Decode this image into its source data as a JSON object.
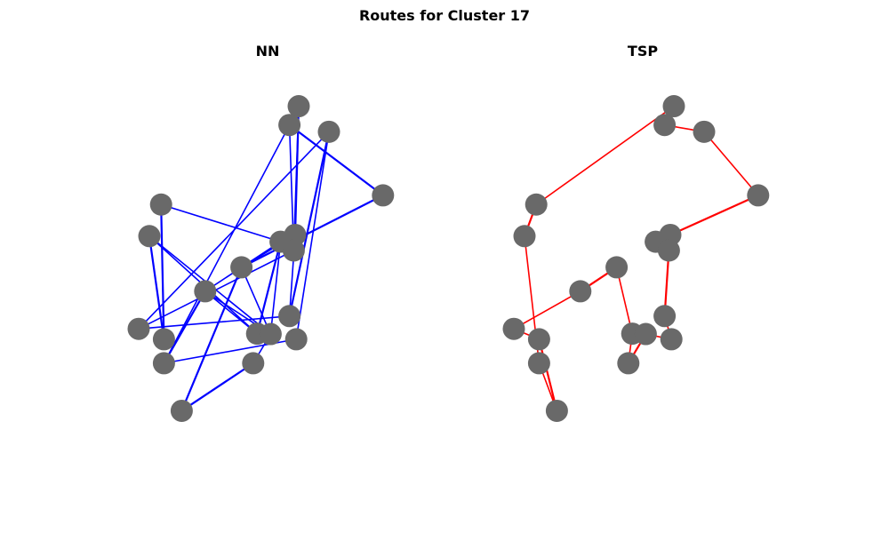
{
  "figure": {
    "title": "Routes for Cluster 17"
  },
  "colors": {
    "node": "#696969",
    "nn_edge": "#0000ff",
    "tsp_edge": "#ff0000"
  },
  "chart_data": [
    {
      "type": "network",
      "title": "NN",
      "xlim": [
        0,
        7.5
      ],
      "ylim": [
        0,
        10
      ],
      "axis_visible": false,
      "grid": false,
      "nodes": [
        {
          "id": 0,
          "x": 5.28,
          "y": 9.01
        },
        {
          "id": 1,
          "x": 5.02,
          "y": 8.54
        },
        {
          "id": 2,
          "x": 6.13,
          "y": 8.37
        },
        {
          "id": 3,
          "x": 7.65,
          "y": 6.78
        },
        {
          "id": 4,
          "x": 1.41,
          "y": 6.55
        },
        {
          "id": 5,
          "x": 1.08,
          "y": 5.76
        },
        {
          "id": 6,
          "x": 5.18,
          "y": 5.79
        },
        {
          "id": 7,
          "x": 4.77,
          "y": 5.62
        },
        {
          "id": 8,
          "x": 5.14,
          "y": 5.4
        },
        {
          "id": 9,
          "x": 3.67,
          "y": 4.98
        },
        {
          "id": 10,
          "x": 2.65,
          "y": 4.38
        },
        {
          "id": 11,
          "x": 0.78,
          "y": 3.44
        },
        {
          "id": 12,
          "x": 1.49,
          "y": 3.18
        },
        {
          "id": 13,
          "x": 4.11,
          "y": 3.32
        },
        {
          "id": 14,
          "x": 4.49,
          "y": 3.31
        },
        {
          "id": 15,
          "x": 5.02,
          "y": 3.76
        },
        {
          "id": 16,
          "x": 5.21,
          "y": 3.18
        },
        {
          "id": 17,
          "x": 1.49,
          "y": 2.58
        },
        {
          "id": 18,
          "x": 4.0,
          "y": 2.58
        },
        {
          "id": 19,
          "x": 1.99,
          "y": 1.39
        }
      ],
      "edges": [
        [
          0,
          6
        ],
        [
          1,
          8
        ],
        [
          1,
          17
        ],
        [
          1,
          3
        ],
        [
          2,
          11
        ],
        [
          2,
          16
        ],
        [
          3,
          9
        ],
        [
          4,
          7
        ],
        [
          4,
          12
        ],
        [
          5,
          12
        ],
        [
          5,
          13
        ],
        [
          6,
          9
        ],
        [
          7,
          13
        ],
        [
          7,
          10
        ],
        [
          8,
          11
        ],
        [
          9,
          19
        ],
        [
          9,
          14
        ],
        [
          10,
          14
        ],
        [
          10,
          17
        ],
        [
          11,
          15
        ],
        [
          15,
          6
        ],
        [
          12,
          4
        ],
        [
          16,
          17
        ],
        [
          14,
          7
        ],
        [
          18,
          19
        ],
        [
          18,
          14
        ],
        [
          0,
          8
        ],
        [
          2,
          15
        ],
        [
          5,
          14
        ],
        [
          13,
          10
        ]
      ]
    },
    {
      "type": "network",
      "title": "TSP",
      "xlim": [
        0,
        7.5
      ],
      "ylim": [
        0,
        10
      ],
      "axis_visible": false,
      "grid": false,
      "nodes": [
        {
          "id": 0,
          "x": 5.28,
          "y": 9.01
        },
        {
          "id": 1,
          "x": 5.02,
          "y": 8.54
        },
        {
          "id": 2,
          "x": 6.13,
          "y": 8.37
        },
        {
          "id": 3,
          "x": 7.65,
          "y": 6.78
        },
        {
          "id": 4,
          "x": 1.41,
          "y": 6.55
        },
        {
          "id": 5,
          "x": 1.08,
          "y": 5.76
        },
        {
          "id": 6,
          "x": 5.18,
          "y": 5.79
        },
        {
          "id": 7,
          "x": 4.77,
          "y": 5.62
        },
        {
          "id": 8,
          "x": 5.14,
          "y": 5.4
        },
        {
          "id": 9,
          "x": 3.67,
          "y": 4.98
        },
        {
          "id": 10,
          "x": 2.65,
          "y": 4.38
        },
        {
          "id": 11,
          "x": 0.78,
          "y": 3.44
        },
        {
          "id": 12,
          "x": 1.49,
          "y": 3.18
        },
        {
          "id": 13,
          "x": 4.11,
          "y": 3.32
        },
        {
          "id": 14,
          "x": 4.49,
          "y": 3.31
        },
        {
          "id": 15,
          "x": 5.02,
          "y": 3.76
        },
        {
          "id": 16,
          "x": 5.21,
          "y": 3.18
        },
        {
          "id": 17,
          "x": 1.49,
          "y": 2.58
        },
        {
          "id": 18,
          "x": 4.0,
          "y": 2.58
        },
        {
          "id": 19,
          "x": 1.99,
          "y": 1.39
        }
      ],
      "edges": [
        [
          0,
          1
        ],
        [
          1,
          2
        ],
        [
          2,
          3
        ],
        [
          3,
          6
        ],
        [
          6,
          7
        ],
        [
          6,
          8
        ],
        [
          8,
          15
        ],
        [
          15,
          16
        ],
        [
          16,
          14
        ],
        [
          14,
          18
        ],
        [
          18,
          13
        ],
        [
          13,
          9
        ],
        [
          9,
          10
        ],
        [
          10,
          11
        ],
        [
          11,
          12
        ],
        [
          12,
          19
        ],
        [
          19,
          17
        ],
        [
          17,
          5
        ],
        [
          5,
          4
        ],
        [
          4,
          0
        ]
      ]
    }
  ]
}
